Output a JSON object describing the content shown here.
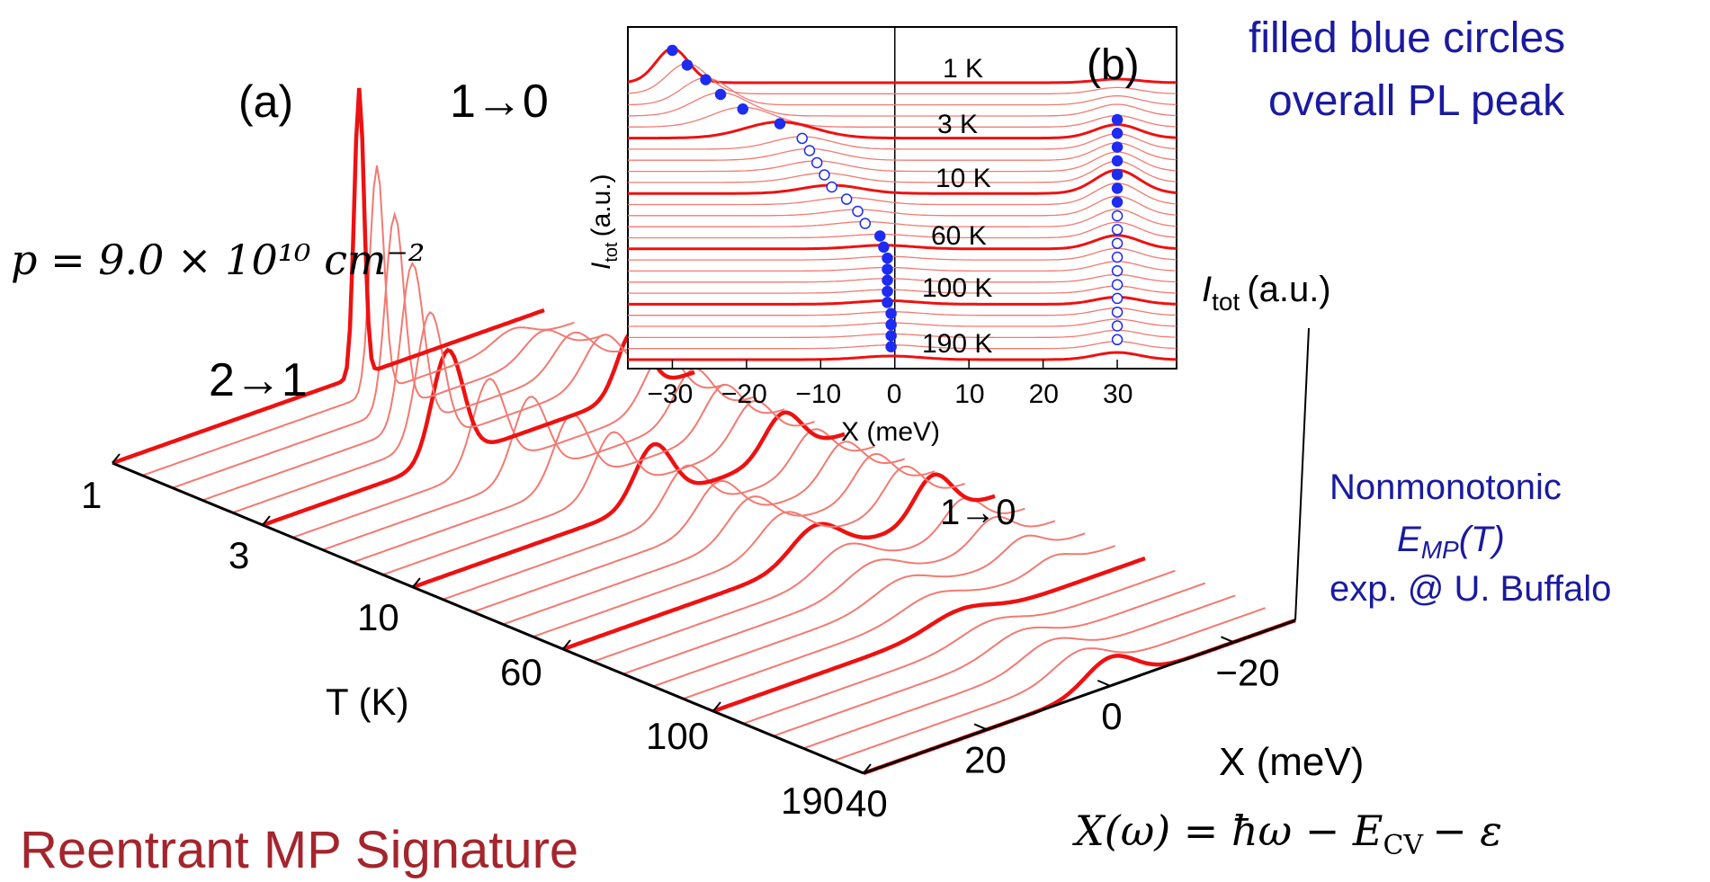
{
  "colors": {
    "curve": "#ee1111",
    "curve_light": "#f27a72",
    "marker_blue": "#1d2cf0",
    "annotation_blue": "#1a1aa0",
    "title_red": "#a4252d",
    "axis": "#000000"
  },
  "panel_a": {
    "label": "(a)",
    "density_formula": "p = 9.0 × 10¹⁰ cm⁻²",
    "peak_label_10": "1→0",
    "peak_label_21": "2→1",
    "peak_label_10_right": "1→0",
    "t_axis_label": "T (K)",
    "x_axis_label": "X (meV)",
    "i_axis_label_main": "I",
    "i_axis_label_sub": "tot",
    "i_axis_label_unit": "(a.u.)",
    "formula": "X(ω) = ħω − E",
    "formula_sub": "CV",
    "formula_end": "− ε"
  },
  "panel_b_text": {
    "label": "(b)",
    "y_label_main": "I",
    "y_label_sub": "tot",
    "y_label_unit": "(a.u.)",
    "x_label": "X (meV)"
  },
  "annotations": {
    "blue_circles_1": "filled blue circles",
    "blue_circles_2": "overall PL peak",
    "nonmono_1": "Nonmonotonic",
    "nonmono_2": "E",
    "nonmono_2_sub": "MP",
    "nonmono_2_end": "(T)",
    "nonmono_3": "exp. @ U. Buffalo",
    "signature": "Reentrant MP Signature"
  },
  "chart_data": [
    {
      "type": "line",
      "panel": "(a)",
      "x_axis": {
        "label": "X (meV)",
        "ticks": [
          40,
          20,
          0,
          -20
        ]
      },
      "t_axis": {
        "label": "T (K)",
        "ticks": [
          "1",
          "3",
          "10",
          "60",
          "100",
          "190"
        ]
      },
      "series": [
        {
          "T": 1,
          "bold": true,
          "peaks": [
            {
              "x": 0,
              "h": 1.0,
              "w": 0.8
            }
          ]
        },
        {
          "T": 3,
          "bold": true,
          "peaks": [
            {
              "x": 10,
              "h": 0.38,
              "w": 2.5
            },
            {
              "x": -20,
              "h": 0.22,
              "w": 2.5
            }
          ]
        },
        {
          "T": 10,
          "bold": true,
          "peaks": [
            {
              "x": 1,
              "h": 0.2,
              "w": 3
            },
            {
              "x": -20,
              "h": 0.15,
              "w": 3
            }
          ]
        },
        {
          "T": 60,
          "bold": true,
          "peaks": [
            {
              "x": -1,
              "h": 0.12,
              "w": 4
            },
            {
              "x": -20,
              "h": 0.15,
              "w": 3
            }
          ]
        },
        {
          "T": 100,
          "bold": true,
          "peaks": [
            {
              "x": 0,
              "h": 0.05,
              "w": 5
            }
          ]
        },
        {
          "T": 190,
          "bold": true,
          "peaks": [
            {
              "x": 0,
              "h": 0.1,
              "w": 4
            }
          ]
        }
      ]
    },
    {
      "type": "line",
      "panel": "(b)",
      "xlabel": "X (meV)",
      "ylabel": "I tot (a.u.)",
      "xlim": [
        -36,
        38
      ],
      "x_ticks": [
        -30,
        -20,
        -10,
        0,
        10,
        20,
        30
      ],
      "curve_labels": [
        "1 K",
        "3 K",
        "10 K",
        "60 K",
        "100 K",
        "190 K"
      ],
      "peak_positions_left_meV": [
        -30,
        -28,
        -25.5,
        -23.5,
        -20.5,
        -15.5,
        -12.5,
        -11.5,
        -10.5,
        -9.5,
        -8.5,
        -6.5,
        -5,
        -4,
        -2,
        -1.5,
        -1,
        -1,
        -1,
        -1,
        -1,
        -0.5,
        -0.5,
        -0.5,
        -0.5
      ],
      "peak_positions_right_meV": [
        30,
        30,
        30,
        30,
        30,
        30,
        30,
        30,
        30,
        30,
        30,
        30,
        30,
        30,
        30,
        30,
        30
      ],
      "marker_fill": "filled = overall PL peak, open = local peak"
    }
  ]
}
